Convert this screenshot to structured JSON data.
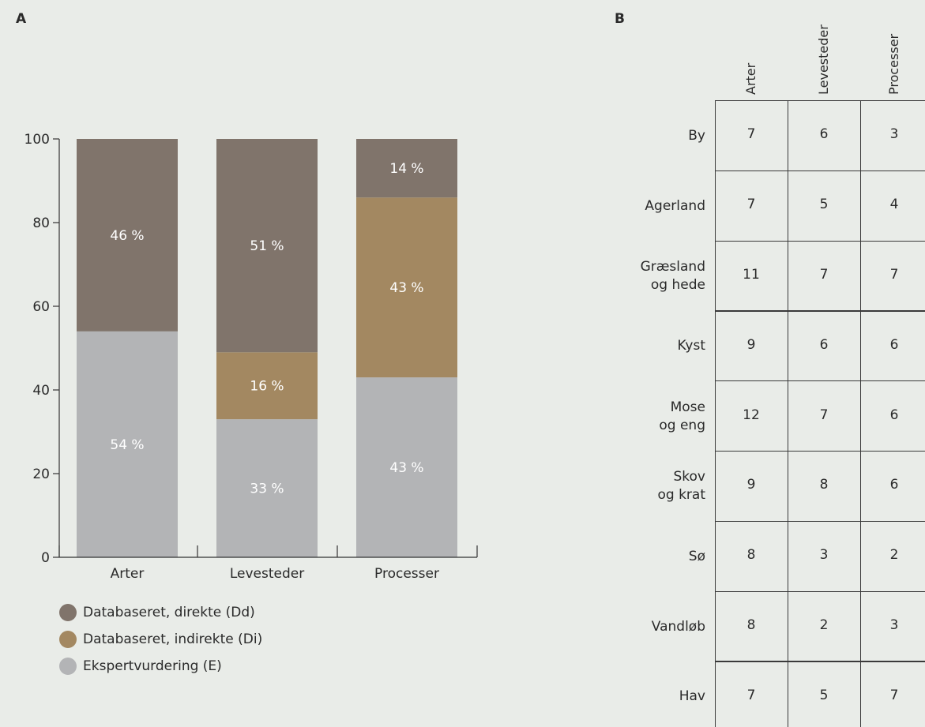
{
  "panel_a_label": "A",
  "panel_b_label": "B",
  "colors": {
    "direkte": "#80746b",
    "indirekte": "#a38861",
    "ekspert": "#b3b4b6",
    "background": "#e9ece8"
  },
  "chart_data": {
    "type": "bar",
    "stacked": true,
    "categories": [
      "Arter",
      "Levesteder",
      "Processer"
    ],
    "ylim": [
      0,
      100
    ],
    "yticks": [
      "0",
      "20",
      "40",
      "60",
      "80",
      "100"
    ],
    "series": [
      {
        "name": "Ekspertvurdering (E)",
        "values": [
          54,
          33,
          43
        ],
        "labels": [
          "54 %",
          "33 %",
          "43 %"
        ],
        "color_key": "ekspert"
      },
      {
        "name": "Databaseret, indirekte (Di)",
        "values": [
          0,
          16,
          43
        ],
        "labels": [
          "",
          "16 %",
          "43 %"
        ],
        "color_key": "indirekte"
      },
      {
        "name": "Databaseret, direkte (Dd)",
        "values": [
          46,
          51,
          14
        ],
        "labels": [
          "46 %",
          "51 %",
          "14 %"
        ],
        "color_key": "direkte"
      }
    ],
    "legend": {
      "placement": "bottom-left",
      "items": [
        {
          "label": "Databaseret, direkte (Dd)",
          "color_key": "direkte"
        },
        {
          "label": "Databaseret, indirekte (Di)",
          "color_key": "indirekte"
        },
        {
          "label": "Ekspertvurdering (E)",
          "color_key": "ekspert"
        }
      ]
    }
  },
  "table_b": {
    "columns": [
      "Arter",
      "Levesteder",
      "Processer"
    ],
    "rows": [
      {
        "label": [
          "By"
        ],
        "values": [
          "7",
          "6",
          "3"
        ]
      },
      {
        "label": [
          "Agerland"
        ],
        "values": [
          "7",
          "5",
          "4"
        ]
      },
      {
        "label": [
          "Græsland",
          "og hede"
        ],
        "values": [
          "11",
          "7",
          "7"
        ]
      },
      {
        "label": [
          "Kyst"
        ],
        "values": [
          "9",
          "6",
          "6"
        ]
      },
      {
        "label": [
          "Mose",
          "og eng"
        ],
        "values": [
          "12",
          "7",
          "6"
        ]
      },
      {
        "label": [
          "Skov",
          "og krat"
        ],
        "values": [
          "9",
          "8",
          "6"
        ]
      },
      {
        "label": [
          "Sø"
        ],
        "values": [
          "8",
          "3",
          "2"
        ]
      },
      {
        "label": [
          "Vandløb"
        ],
        "values": [
          "8",
          "2",
          "3"
        ]
      },
      {
        "label": [
          "Hav"
        ],
        "values": [
          "7",
          "5",
          "7"
        ]
      }
    ]
  }
}
